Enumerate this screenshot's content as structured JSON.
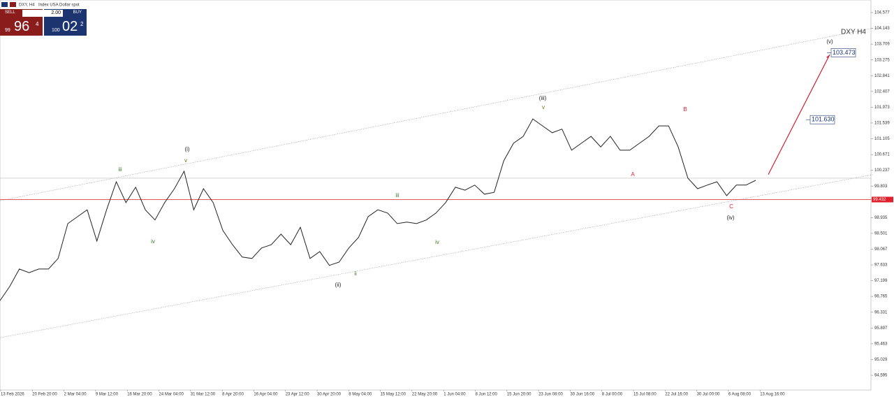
{
  "header": {
    "symbol": "DXY, H4",
    "description": "Index USA Dollar spot"
  },
  "trade_panel": {
    "sell": "SELL",
    "buy": "BUY",
    "lot": "2.00",
    "sell_price": [
      "99",
      "96",
      "4"
    ],
    "buy_price": [
      "100",
      "02",
      "2"
    ]
  },
  "chart_label": "DXY H4",
  "price": {
    "ylim": [
      94.191,
      104.923
    ],
    "yticks": [
      104.577,
      104.143,
      103.709,
      103.275,
      102.841,
      102.407,
      101.973,
      101.539,
      101.105,
      100.671,
      100.237,
      99.803,
      98.935,
      98.501,
      98.067,
      97.633,
      97.199,
      96.765,
      96.331,
      95.897,
      95.463,
      95.029,
      94.595
    ],
    "time_labels": [
      "13 Feb 2026",
      "20 Feb 20:00",
      "2 Mar 04:00",
      "9 Mar 12:00",
      "16 Mar 20:00",
      "24 Mar 04:00",
      "31 Mar 12:00",
      "8 Apr 20:00",
      "16 Apr 04:00",
      "23 Apr 12:00",
      "30 Apr 20:00",
      "8 May 04:00",
      "15 May 12:00",
      "22 May 20:00",
      "1 Jun 04:00",
      "8 Jun 12:00",
      "15 Jun 20:00",
      "23 Jun 08:00",
      "30 Jun 16:00",
      "8 Jul 00:00",
      "15 Jul 08:00",
      "22 Jul 16:00",
      "30 Jul 00:00",
      "6 Aug 08:00",
      "13 Aug 16:00"
    ],
    "closes": [
      96.65,
      97.04,
      97.52,
      97.42,
      97.52,
      97.52,
      97.81,
      98.77,
      98.96,
      99.15,
      98.29,
      99.15,
      99.92,
      99.35,
      99.77,
      99.15,
      98.87,
      99.35,
      99.73,
      100.21,
      99.15,
      99.73,
      99.35,
      98.58,
      98.19,
      97.85,
      97.81,
      98.1,
      98.19,
      98.48,
      98.19,
      98.67,
      97.81,
      98.0,
      97.62,
      97.71,
      98.1,
      98.39,
      98.96,
      99.15,
      99.06,
      98.77,
      98.81,
      98.77,
      98.87,
      99.06,
      99.35,
      99.77,
      99.69,
      99.83,
      99.58,
      99.63,
      100.5,
      100.98,
      101.17,
      101.65,
      101.46,
      101.27,
      101.37,
      100.79,
      100.98,
      101.17,
      100.88,
      101.17,
      100.79,
      100.79,
      100.98,
      101.17,
      101.46,
      101.46,
      100.88,
      100.02,
      99.73,
      99.83,
      99.92,
      99.54,
      99.83,
      99.83,
      99.96
    ],
    "color": "#222222",
    "support_line": {
      "value": 99.432,
      "label": "99.432",
      "color": "#e0202a"
    },
    "bid_line": 100.02,
    "channel_upper": [
      99.4,
      104.15
    ],
    "channel_lower": [
      95.63,
      100.12
    ],
    "projection": {
      "from": 100.12,
      "to": 103.42,
      "color": "#d02030"
    },
    "targets": [
      {
        "value": 103.473,
        "label": "103.473"
      },
      {
        "value": 101.63,
        "label": "101.630"
      }
    ]
  },
  "wave_labels": [
    {
      "text": "iii",
      "color": "#3a7a2a"
    },
    {
      "text": "(i)",
      "color": "#222222"
    },
    {
      "text": "v",
      "color": "#7a6a10"
    },
    {
      "text": "iv",
      "color": "#3a7a2a"
    },
    {
      "text": "(ii)",
      "color": "#222222"
    },
    {
      "text": "ii",
      "color": "#3a7a2a"
    },
    {
      "text": "iii",
      "color": "#3a7a2a"
    },
    {
      "text": "iv",
      "color": "#3a7a2a"
    },
    {
      "text": "(iii)",
      "color": "#222222"
    },
    {
      "text": "v",
      "color": "#7a6a10"
    },
    {
      "text": "A",
      "color": "#e0202a"
    },
    {
      "text": "B",
      "color": "#e0202a"
    },
    {
      "text": "C",
      "color": "#e0202a"
    },
    {
      "text": "(iv)",
      "color": "#222222"
    },
    {
      "text": "(v)",
      "color": "#222222"
    }
  ]
}
